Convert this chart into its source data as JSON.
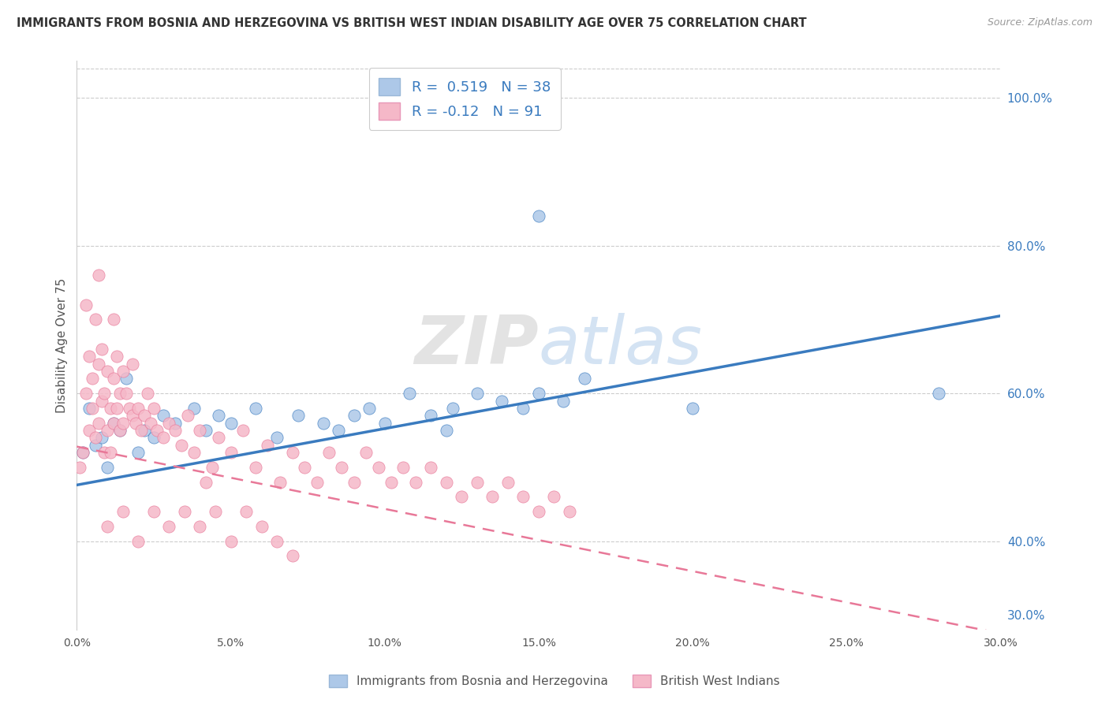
{
  "title": "IMMIGRANTS FROM BOSNIA AND HERZEGOVINA VS BRITISH WEST INDIAN DISABILITY AGE OVER 75 CORRELATION CHART",
  "source": "Source: ZipAtlas.com",
  "ylabel": "Disability Age Over 75",
  "xlim": [
    0.0,
    0.3
  ],
  "ylim": [
    0.28,
    1.05
  ],
  "xtick_labels": [
    "0.0%",
    "5.0%",
    "10.0%",
    "15.0%",
    "20.0%",
    "25.0%",
    "30.0%"
  ],
  "xtick_vals": [
    0.0,
    0.05,
    0.1,
    0.15,
    0.2,
    0.25,
    0.3
  ],
  "ytick_labels": [
    "40.0%",
    "60.0%",
    "80.0%",
    "100.0%"
  ],
  "ytick_vals": [
    0.4,
    0.6,
    0.8,
    1.0
  ],
  "right_ytick_labels": [
    "100.0%",
    "80.0%",
    "60.0%",
    "40.0%",
    "30.0%"
  ],
  "right_ytick_vals": [
    1.0,
    0.8,
    0.6,
    0.4,
    0.3
  ],
  "blue_color": "#adc8e8",
  "pink_color": "#f5b8c8",
  "blue_line_color": "#3a7bbf",
  "pink_line_color": "#e87898",
  "blue_R": 0.519,
  "blue_N": 38,
  "pink_R": -0.12,
  "pink_N": 91,
  "watermark": "ZIPatlas",
  "legend_label_blue": "Immigrants from Bosnia and Herzegovina",
  "legend_label_pink": "British West Indians",
  "blue_line_x0": 0.0,
  "blue_line_y0": 0.476,
  "blue_line_x1": 0.3,
  "blue_line_y1": 0.705,
  "pink_line_x0": 0.0,
  "pink_line_y0": 0.528,
  "pink_line_x1": 0.3,
  "pink_line_y1": 0.275,
  "blue_scatter_x": [
    0.002,
    0.004,
    0.006,
    0.008,
    0.01,
    0.012,
    0.014,
    0.016,
    0.02,
    0.022,
    0.025,
    0.028,
    0.032,
    0.038,
    0.042,
    0.046,
    0.05,
    0.058,
    0.065,
    0.072,
    0.08,
    0.085,
    0.09,
    0.095,
    0.1,
    0.108,
    0.115,
    0.122,
    0.13,
    0.138,
    0.145,
    0.15,
    0.158,
    0.165,
    0.2,
    0.28,
    0.15,
    0.12
  ],
  "blue_scatter_y": [
    0.52,
    0.58,
    0.53,
    0.54,
    0.5,
    0.56,
    0.55,
    0.62,
    0.52,
    0.55,
    0.54,
    0.57,
    0.56,
    0.58,
    0.55,
    0.57,
    0.56,
    0.58,
    0.54,
    0.57,
    0.56,
    0.55,
    0.57,
    0.58,
    0.56,
    0.6,
    0.57,
    0.58,
    0.6,
    0.59,
    0.58,
    0.6,
    0.59,
    0.62,
    0.58,
    0.6,
    0.84,
    0.55
  ],
  "pink_scatter_x": [
    0.001,
    0.002,
    0.003,
    0.004,
    0.004,
    0.005,
    0.005,
    0.006,
    0.006,
    0.007,
    0.007,
    0.008,
    0.008,
    0.009,
    0.009,
    0.01,
    0.01,
    0.011,
    0.011,
    0.012,
    0.012,
    0.013,
    0.013,
    0.014,
    0.014,
    0.015,
    0.015,
    0.016,
    0.017,
    0.018,
    0.018,
    0.019,
    0.02,
    0.021,
    0.022,
    0.023,
    0.024,
    0.025,
    0.026,
    0.028,
    0.03,
    0.032,
    0.034,
    0.036,
    0.038,
    0.04,
    0.042,
    0.044,
    0.046,
    0.05,
    0.054,
    0.058,
    0.062,
    0.066,
    0.07,
    0.074,
    0.078,
    0.082,
    0.086,
    0.09,
    0.094,
    0.098,
    0.102,
    0.106,
    0.11,
    0.115,
    0.12,
    0.125,
    0.13,
    0.135,
    0.14,
    0.145,
    0.15,
    0.155,
    0.16,
    0.01,
    0.015,
    0.02,
    0.025,
    0.03,
    0.035,
    0.04,
    0.045,
    0.05,
    0.055,
    0.06,
    0.065,
    0.07,
    0.003,
    0.007,
    0.012
  ],
  "pink_scatter_y": [
    0.5,
    0.52,
    0.6,
    0.55,
    0.65,
    0.58,
    0.62,
    0.54,
    0.7,
    0.56,
    0.64,
    0.59,
    0.66,
    0.6,
    0.52,
    0.55,
    0.63,
    0.58,
    0.52,
    0.56,
    0.62,
    0.58,
    0.65,
    0.6,
    0.55,
    0.63,
    0.56,
    0.6,
    0.58,
    0.64,
    0.57,
    0.56,
    0.58,
    0.55,
    0.57,
    0.6,
    0.56,
    0.58,
    0.55,
    0.54,
    0.56,
    0.55,
    0.53,
    0.57,
    0.52,
    0.55,
    0.48,
    0.5,
    0.54,
    0.52,
    0.55,
    0.5,
    0.53,
    0.48,
    0.52,
    0.5,
    0.48,
    0.52,
    0.5,
    0.48,
    0.52,
    0.5,
    0.48,
    0.5,
    0.48,
    0.5,
    0.48,
    0.46,
    0.48,
    0.46,
    0.48,
    0.46,
    0.44,
    0.46,
    0.44,
    0.42,
    0.44,
    0.4,
    0.44,
    0.42,
    0.44,
    0.42,
    0.44,
    0.4,
    0.44,
    0.42,
    0.4,
    0.38,
    0.72,
    0.76,
    0.7
  ]
}
